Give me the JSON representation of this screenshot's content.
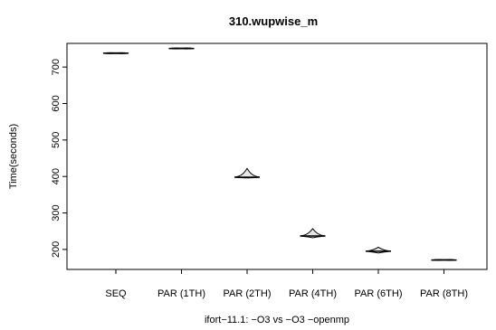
{
  "chart_data": {
    "type": "violin",
    "title": "310.wupwise_m",
    "xlabel": "ifort−11.1: −O3 vs −O3 −openmp",
    "ylabel": "Time(seconds)",
    "ylim": [
      165,
      745
    ],
    "yticks": [
      200,
      300,
      400,
      500,
      600,
      700
    ],
    "grid": false,
    "legend": "none",
    "categories": [
      "SEQ",
      "PAR (1TH)",
      "PAR (2TH)",
      "PAR (4TH)",
      "PAR (6TH)",
      "PAR (8TH)"
    ],
    "series": [
      {
        "violins": [
          {
            "min": 737,
            "median": 738,
            "max": 739,
            "max_width": 0.45
          },
          {
            "min": 750,
            "median": 751,
            "max": 752,
            "max_width": 0.45
          },
          {
            "min": 396,
            "median": 398,
            "max": 422,
            "max_width": 0.45
          },
          {
            "min": 232,
            "median": 237,
            "max": 257,
            "max_width": 0.45
          },
          {
            "min": 190,
            "median": 195,
            "max": 206,
            "max_width": 0.45
          },
          {
            "min": 171,
            "median": 171,
            "max": 172,
            "max_width": 0.45
          }
        ]
      }
    ]
  }
}
